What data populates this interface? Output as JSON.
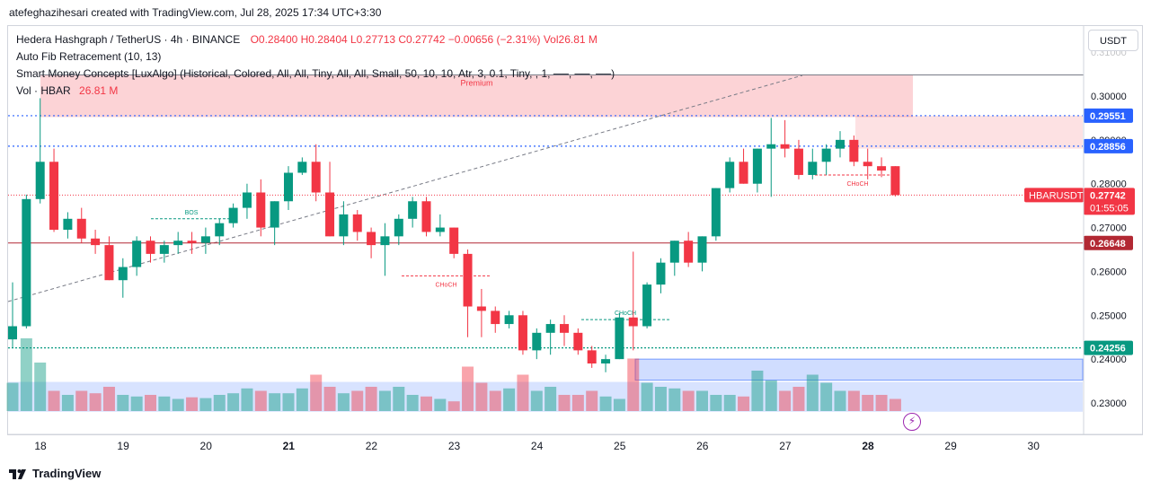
{
  "header": {
    "attribution": "atefeghazihesari created with TradingView.com, Jul 28, 2025 17:34 UTC+3:30"
  },
  "legend": {
    "symbol": "Hedera Hashgraph / TetherUS · 4h · BINANCE",
    "ohlc": "O0.28400  H0.28404  L0.27713  C0.27742  −0.00656 (−2.31%)  Vol26.81 M",
    "indicator_fib": "Auto Fib Retracement (10, 13)",
    "indicator_smc": "Smart Money Concepts [LuxAlgo] (Historical, Colored, All, All, Tiny, All, All, Small, 50, 10, 10, Atr, 3, 0.1, Tiny, , 1, ──, ──, ──)",
    "vol_label": "Vol · HBAR",
    "vol_value": "26.81 M"
  },
  "currency_button": "USDT",
  "brand": "TradingView",
  "chart_data": {
    "type": "candlestick",
    "symbol": "HBARUSDT",
    "interval": "4h",
    "y_ticks": [
      "0.30000",
      "0.29000",
      "0.28000",
      "0.27000",
      "0.26000",
      "0.25000",
      "0.24000",
      "0.23000"
    ],
    "x_ticks": [
      "18",
      "19",
      "20",
      "21",
      "22",
      "23",
      "24",
      "25",
      "26",
      "27",
      "28",
      "29",
      "30"
    ],
    "candles": [
      [
        0.2445,
        0.2575,
        0.2425,
        0.2475
      ],
      [
        0.2475,
        0.2775,
        0.247,
        0.2765
      ],
      [
        0.2765,
        0.2995,
        0.2755,
        0.285
      ],
      [
        0.285,
        0.288,
        0.269,
        0.2695
      ],
      [
        0.2695,
        0.2735,
        0.2675,
        0.272
      ],
      [
        0.272,
        0.2745,
        0.2665,
        0.2675
      ],
      [
        0.2675,
        0.2695,
        0.264,
        0.266
      ],
      [
        0.266,
        0.268,
        0.258,
        0.258
      ],
      [
        0.258,
        0.263,
        0.254,
        0.261
      ],
      [
        0.261,
        0.268,
        0.259,
        0.267
      ],
      [
        0.267,
        0.268,
        0.262,
        0.264
      ],
      [
        0.264,
        0.267,
        0.262,
        0.266
      ],
      [
        0.266,
        0.269,
        0.264,
        0.267
      ],
      [
        0.267,
        0.269,
        0.264,
        0.2665
      ],
      [
        0.2665,
        0.27,
        0.264,
        0.268
      ],
      [
        0.268,
        0.272,
        0.266,
        0.271
      ],
      [
        0.271,
        0.2755,
        0.27,
        0.2745
      ],
      [
        0.2745,
        0.28,
        0.272,
        0.278
      ],
      [
        0.278,
        0.281,
        0.268,
        0.27
      ],
      [
        0.27,
        0.276,
        0.266,
        0.276
      ],
      [
        0.276,
        0.284,
        0.274,
        0.2825
      ],
      [
        0.2825,
        0.286,
        0.282,
        0.285
      ],
      [
        0.285,
        0.289,
        0.276,
        0.278
      ],
      [
        0.278,
        0.285,
        0.268,
        0.268
      ],
      [
        0.268,
        0.276,
        0.266,
        0.273
      ],
      [
        0.273,
        0.274,
        0.267,
        0.269
      ],
      [
        0.269,
        0.27,
        0.263,
        0.266
      ],
      [
        0.266,
        0.271,
        0.259,
        0.268
      ],
      [
        0.268,
        0.273,
        0.266,
        0.272
      ],
      [
        0.272,
        0.277,
        0.27,
        0.276
      ],
      [
        0.276,
        0.277,
        0.268,
        0.269
      ],
      [
        0.269,
        0.273,
        0.268,
        0.27
      ],
      [
        0.27,
        0.27,
        0.263,
        0.264
      ],
      [
        0.264,
        0.265,
        0.245,
        0.252
      ],
      [
        0.252,
        0.256,
        0.245,
        0.251
      ],
      [
        0.251,
        0.252,
        0.246,
        0.248
      ],
      [
        0.248,
        0.251,
        0.247,
        0.25
      ],
      [
        0.25,
        0.251,
        0.241,
        0.242
      ],
      [
        0.242,
        0.247,
        0.24,
        0.246
      ],
      [
        0.246,
        0.249,
        0.241,
        0.248
      ],
      [
        0.248,
        0.25,
        0.243,
        0.246
      ],
      [
        0.246,
        0.247,
        0.241,
        0.242
      ],
      [
        0.242,
        0.243,
        0.238,
        0.239
      ],
      [
        0.239,
        0.241,
        0.237,
        0.24
      ],
      [
        0.24,
        0.2505,
        0.24,
        0.2495
      ],
      [
        0.2495,
        0.2645,
        0.242,
        0.2475
      ],
      [
        0.2475,
        0.2575,
        0.247,
        0.257
      ],
      [
        0.257,
        0.263,
        0.255,
        0.262
      ],
      [
        0.262,
        0.267,
        0.259,
        0.267
      ],
      [
        0.267,
        0.269,
        0.261,
        0.262
      ],
      [
        0.262,
        0.268,
        0.26,
        0.268
      ],
      [
        0.268,
        0.279,
        0.267,
        0.279
      ],
      [
        0.279,
        0.286,
        0.278,
        0.285
      ],
      [
        0.285,
        0.288,
        0.28,
        0.28
      ],
      [
        0.28,
        0.288,
        0.278,
        0.288
      ],
      [
        0.288,
        0.295,
        0.277,
        0.289
      ],
      [
        0.289,
        0.2945,
        0.286,
        0.288
      ],
      [
        0.288,
        0.29,
        0.281,
        0.282
      ],
      [
        0.282,
        0.288,
        0.281,
        0.285
      ],
      [
        0.285,
        0.289,
        0.282,
        0.288
      ],
      [
        0.288,
        0.292,
        0.286,
        0.29
      ],
      [
        0.29,
        0.291,
        0.284,
        0.285
      ],
      [
        0.285,
        0.288,
        0.281,
        0.284
      ],
      [
        0.284,
        0.286,
        0.2815,
        0.283
      ],
      [
        0.284,
        0.284,
        0.2771,
        0.2774
      ]
    ],
    "volume_relative": [
      0.35,
      0.9,
      0.6,
      0.25,
      0.2,
      0.25,
      0.22,
      0.3,
      0.2,
      0.18,
      0.2,
      0.18,
      0.15,
      0.17,
      0.16,
      0.2,
      0.22,
      0.28,
      0.25,
      0.22,
      0.22,
      0.28,
      0.45,
      0.3,
      0.22,
      0.25,
      0.3,
      0.25,
      0.3,
      0.2,
      0.18,
      0.15,
      0.12,
      0.55,
      0.35,
      0.25,
      0.28,
      0.45,
      0.25,
      0.3,
      0.2,
      0.2,
      0.25,
      0.18,
      0.15,
      0.65,
      0.35,
      0.3,
      0.28,
      0.25,
      0.25,
      0.2,
      0.2,
      0.18,
      0.5,
      0.38,
      0.25,
      0.3,
      0.45,
      0.35,
      0.25,
      0.25,
      0.2,
      0.2,
      0.15
    ],
    "price_levels": [
      {
        "value": 0.29551,
        "label": "0.29551",
        "style": "dotted"
      },
      {
        "value": 0.28856,
        "label": "0.28856",
        "style": "dotted"
      },
      {
        "value": 0.26648,
        "label": "0.26648",
        "style": "solid-red"
      },
      {
        "value": 0.24256,
        "label": "0.24256",
        "style": "dotted-green"
      }
    ],
    "last_price": {
      "symbol": "HBARUSDT",
      "value": "0.27742",
      "countdown": "01:55:05"
    },
    "zones": [
      {
        "kind": "premium",
        "label": "Premium",
        "from": 0.2952,
        "to": 0.3048
      },
      {
        "kind": "supply",
        "from": 0.288,
        "to": 0.2955
      },
      {
        "kind": "demand",
        "from": 0.2352,
        "to": 0.24
      },
      {
        "kind": "discount",
        "from": 0.228,
        "to": 0.2348
      }
    ],
    "structure_labels": [
      {
        "text": "BOS",
        "price": 0.272
      },
      {
        "text": "CHoCH",
        "price": 0.259
      },
      {
        "text": "CHoCH",
        "price": 0.249
      },
      {
        "text": "CHoCH",
        "price": 0.282
      }
    ]
  }
}
